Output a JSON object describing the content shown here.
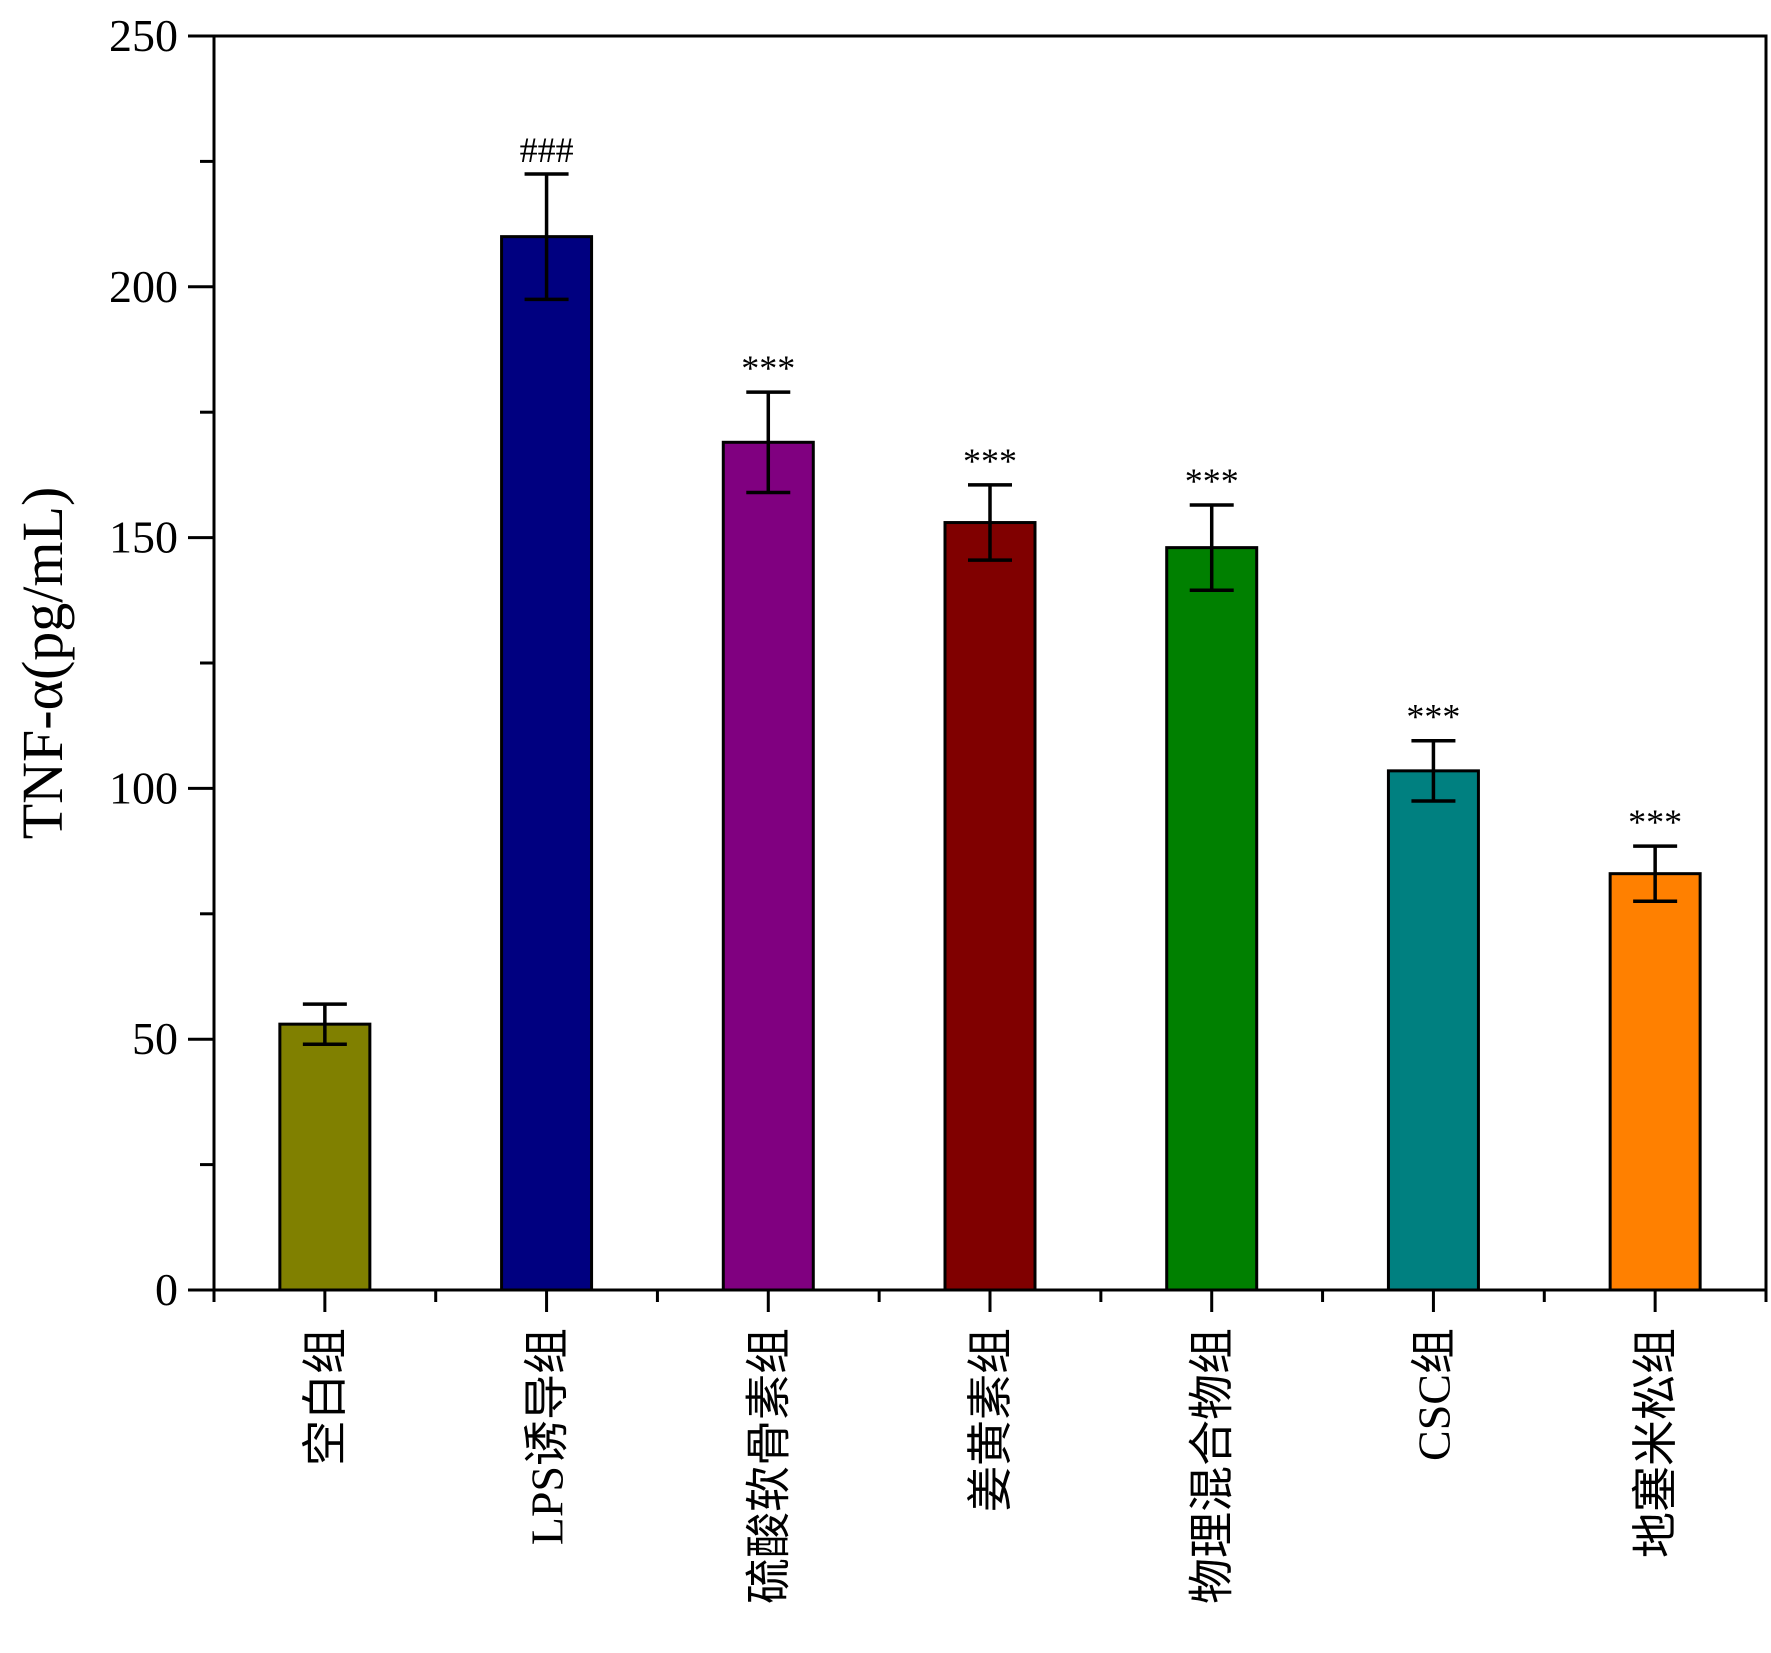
{
  "chart_data": {
    "type": "bar",
    "ylabel": "TNF-α(pg/mL)",
    "xlabel": "",
    "title": "",
    "ylim": [
      0,
      250
    ],
    "yticks": [
      0,
      50,
      100,
      150,
      200,
      250
    ],
    "grid": false,
    "categories": [
      "空白组",
      "LPS诱导组",
      "硫酸软骨素组",
      "姜黄素组",
      "物理混合物组",
      "CSC组",
      "地塞米松组"
    ],
    "values": [
      53,
      210,
      169,
      153,
      148,
      103.5,
      83
    ],
    "errors": [
      4,
      12.5,
      10,
      7.5,
      8.5,
      6,
      5.5
    ],
    "annotations": [
      "",
      "###",
      "***",
      "***",
      "***",
      "***",
      "***"
    ],
    "colors": [
      "#808000",
      "#000080",
      "#800080",
      "#800000",
      "#008000",
      "#008080",
      "#ff8000"
    ]
  }
}
